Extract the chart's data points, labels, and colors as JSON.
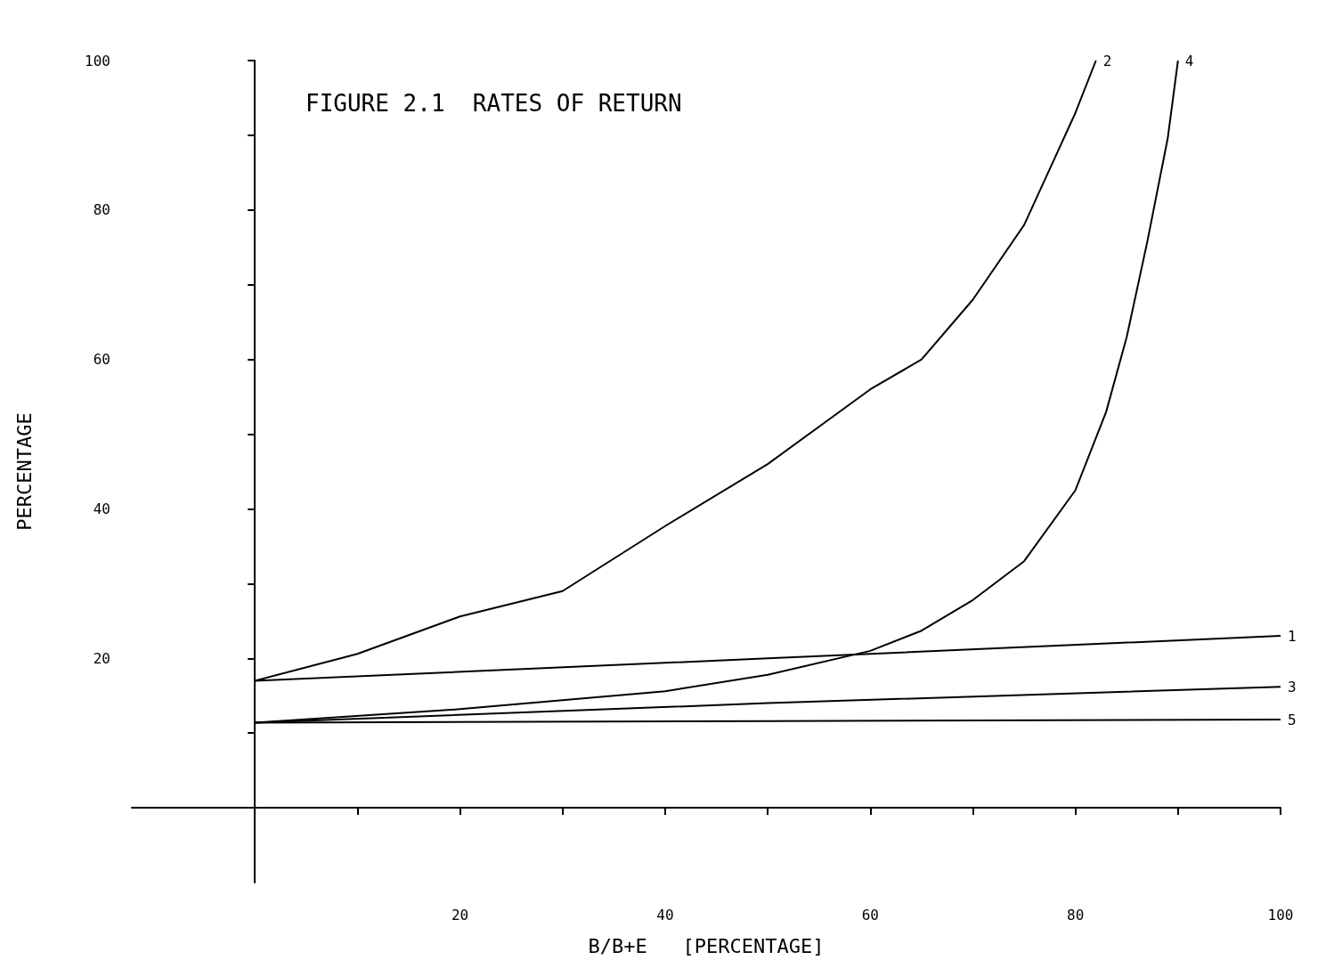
{
  "chart_data": {
    "type": "line",
    "title": "FIGURE 2.1  RATES OF RETURN",
    "xlabel": "B/B+E   [PERCENTAGE]",
    "ylabel": "PERCENTAGE",
    "xlim": [
      -12,
      100
    ],
    "ylim": [
      -10,
      100
    ],
    "xticks": [
      {
        "value": 10,
        "label": null
      },
      20,
      {
        "value": 30,
        "label": null
      },
      40,
      {
        "value": 50,
        "label": null
      },
      60,
      {
        "value": 70,
        "label": null
      },
      80,
      {
        "value": 90,
        "label": null
      },
      100
    ],
    "yticks": [
      {
        "value": 10,
        "label": null
      },
      20,
      {
        "value": 30,
        "label": null
      },
      40,
      {
        "value": 50,
        "label": null
      },
      60,
      {
        "value": 70,
        "label": null
      },
      80,
      {
        "value": 90,
        "label": null
      },
      100
    ],
    "grid": false,
    "legend": false,
    "marker": "none",
    "line_style": "solid",
    "series": [
      {
        "name": "1",
        "color": "#000000",
        "x": [
          0,
          50,
          100
        ],
        "values": [
          17,
          20,
          23
        ]
      },
      {
        "name": "2",
        "color": "#000000",
        "x": [
          0,
          10,
          20,
          30,
          40,
          50,
          60,
          65,
          70,
          75,
          78,
          80,
          82
        ],
        "values": [
          17,
          20.6,
          25.6,
          29,
          37.7,
          46,
          56,
          60,
          68,
          78,
          87,
          93,
          100
        ]
      },
      {
        "name": "3",
        "color": "#000000",
        "x": [
          0,
          50,
          100
        ],
        "values": [
          11.4,
          14,
          16.2
        ]
      },
      {
        "name": "4",
        "color": "#000000",
        "x": [
          0,
          20,
          40,
          50,
          60,
          65,
          70,
          75,
          80,
          83,
          85,
          87,
          89,
          90
        ],
        "values": [
          11.4,
          13.2,
          15.6,
          17.8,
          21,
          23.7,
          27.8,
          33,
          42.5,
          53,
          63,
          75.7,
          89.6,
          100
        ]
      },
      {
        "name": "5",
        "color": "#000000",
        "x": [
          0,
          50,
          100
        ],
        "values": [
          11.4,
          11.6,
          11.8
        ]
      }
    ]
  }
}
